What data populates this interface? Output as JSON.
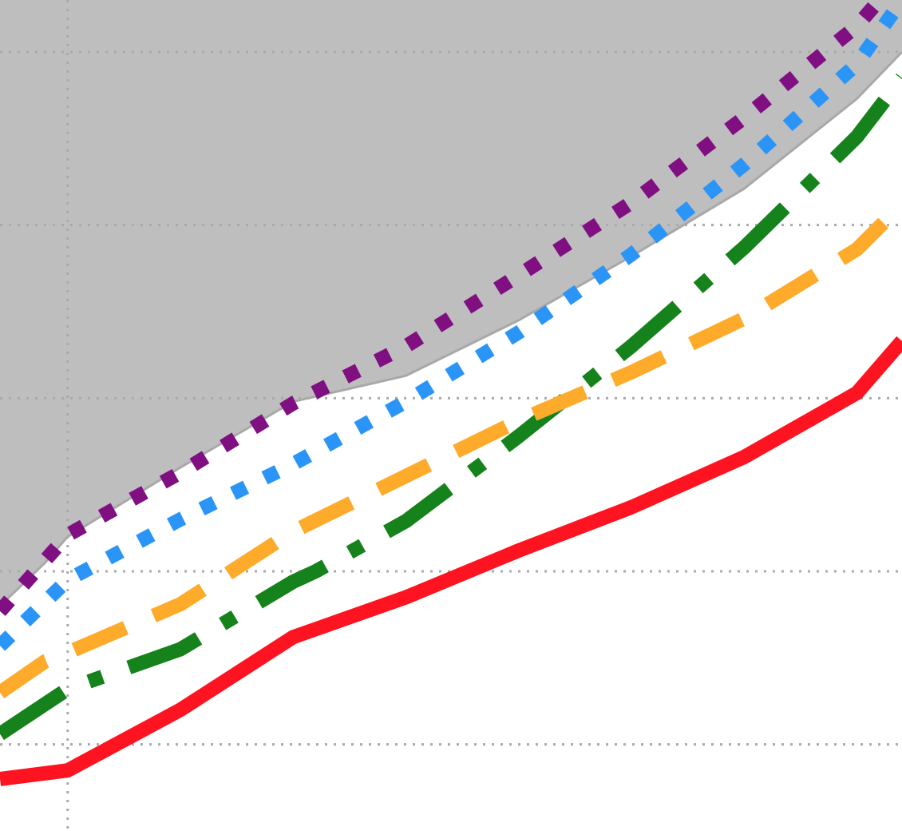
{
  "chart_data": {
    "type": "line",
    "title": "",
    "xlabel": "",
    "ylabel": "",
    "xlim": [
      -0.6,
      7.4
    ],
    "ylim": [
      -0.5,
      4.3
    ],
    "grid": true,
    "grid_style": "dotted",
    "grid_x": [
      0
    ],
    "grid_y": [
      0,
      1,
      2,
      3,
      4
    ],
    "shaded_region": {
      "color": "#bebebe",
      "edge_color": "#a8a8a8",
      "x": [
        -0.6,
        -0.2,
        0,
        1,
        2,
        3,
        4,
        5,
        6,
        7,
        7.4
      ],
      "y_lower": [
        0.8,
        1.05,
        1.2,
        1.6,
        1.98,
        2.13,
        2.45,
        2.82,
        3.21,
        3.73,
        4.0
      ]
    },
    "series": [
      {
        "color": "#fe1421",
        "line_style": "solid",
        "x": [
          -0.6,
          0,
          1,
          2,
          3,
          4,
          5,
          6,
          7,
          7.4
        ],
        "y": [
          -0.2,
          -0.15,
          0.2,
          0.62,
          0.85,
          1.12,
          1.37,
          1.66,
          2.03,
          2.33
        ]
      },
      {
        "color": "#15821b",
        "line_style": "dash-dot",
        "x": [
          -0.6,
          0,
          1,
          2,
          2.2,
          3,
          4,
          5,
          6,
          7,
          7.4
        ],
        "y": [
          0.06,
          0.32,
          0.55,
          0.94,
          1.0,
          1.29,
          1.78,
          2.3,
          2.87,
          3.51,
          3.85
        ]
      },
      {
        "color": "#feaa2a",
        "line_style": "long-dash",
        "x": [
          -0.6,
          -0.2,
          0,
          1,
          2,
          3,
          4,
          5,
          6,
          7,
          7.4
        ],
        "y": [
          0.3,
          0.48,
          0.53,
          0.81,
          1.23,
          1.55,
          1.87,
          2.15,
          2.46,
          2.86,
          3.12
        ]
      },
      {
        "color": "#2b95f7",
        "line_style": "dotted",
        "x": [
          -0.6,
          0,
          1,
          2,
          3,
          4,
          5,
          6,
          7,
          7.4
        ],
        "y": [
          0.57,
          0.95,
          1.3,
          1.62,
          1.98,
          2.38,
          2.83,
          3.35,
          3.93,
          4.3
        ]
      },
      {
        "color": "#800f82",
        "line_style": "dotted",
        "x": [
          -0.6,
          0,
          1,
          2,
          3,
          4,
          5,
          6,
          7,
          7.4
        ],
        "y": [
          0.77,
          1.21,
          1.57,
          1.97,
          2.3,
          2.71,
          3.13,
          3.62,
          4.15,
          4.45
        ]
      }
    ]
  }
}
